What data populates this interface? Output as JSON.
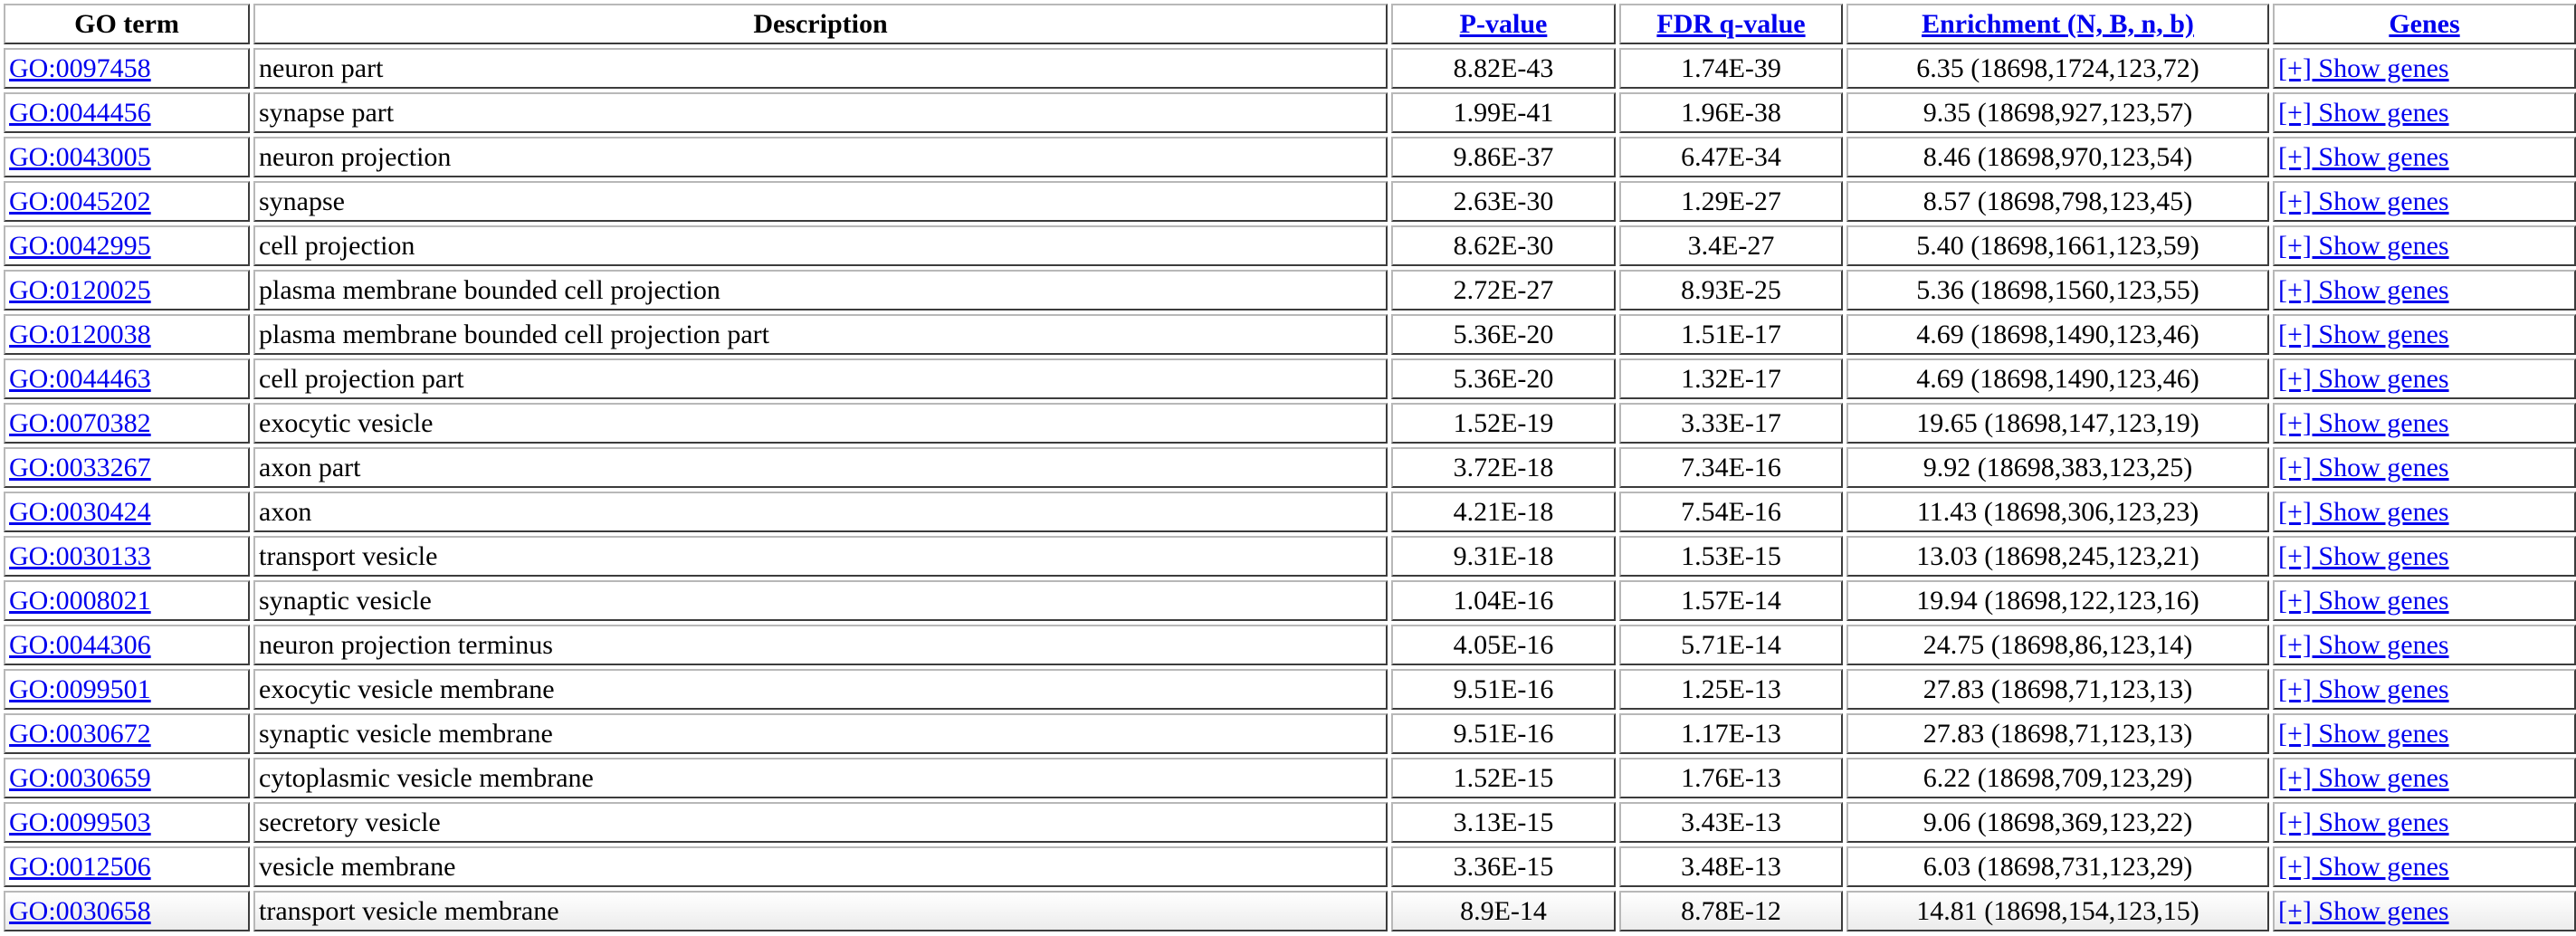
{
  "headers": {
    "go_term": "GO term",
    "description": "Description",
    "pvalue": "P-value",
    "fdr": "FDR q-value",
    "enrichment": "Enrichment (N, B, n, b)",
    "genes": "Genes"
  },
  "link_color": "#0000ee",
  "rows": [
    {
      "go": "GO:0097458",
      "desc": "neuron part",
      "p": "8.82E-43",
      "fdr": "1.74E-39",
      "enr": "6.35 (18698,1724,123,72)",
      "genes": "[+] Show genes"
    },
    {
      "go": "GO:0044456",
      "desc": "synapse part",
      "p": "1.99E-41",
      "fdr": "1.96E-38",
      "enr": "9.35 (18698,927,123,57)",
      "genes": "[+] Show genes"
    },
    {
      "go": "GO:0043005",
      "desc": "neuron projection",
      "p": "9.86E-37",
      "fdr": "6.47E-34",
      "enr": "8.46 (18698,970,123,54)",
      "genes": "[+] Show genes"
    },
    {
      "go": "GO:0045202",
      "desc": "synapse",
      "p": "2.63E-30",
      "fdr": "1.29E-27",
      "enr": "8.57 (18698,798,123,45)",
      "genes": "[+] Show genes"
    },
    {
      "go": "GO:0042995",
      "desc": "cell projection",
      "p": "8.62E-30",
      "fdr": "3.4E-27",
      "enr": "5.40 (18698,1661,123,59)",
      "genes": "[+] Show genes"
    },
    {
      "go": "GO:0120025",
      "desc": "plasma membrane bounded cell projection",
      "p": "2.72E-27",
      "fdr": "8.93E-25",
      "enr": "5.36 (18698,1560,123,55)",
      "genes": "[+] Show genes"
    },
    {
      "go": "GO:0120038",
      "desc": "plasma membrane bounded cell projection part",
      "p": "5.36E-20",
      "fdr": "1.51E-17",
      "enr": "4.69 (18698,1490,123,46)",
      "genes": "[+] Show genes"
    },
    {
      "go": "GO:0044463",
      "desc": "cell projection part",
      "p": "5.36E-20",
      "fdr": "1.32E-17",
      "enr": "4.69 (18698,1490,123,46)",
      "genes": "[+] Show genes"
    },
    {
      "go": "GO:0070382",
      "desc": "exocytic vesicle",
      "p": "1.52E-19",
      "fdr": "3.33E-17",
      "enr": "19.65 (18698,147,123,19)",
      "genes": "[+] Show genes"
    },
    {
      "go": "GO:0033267",
      "desc": "axon part",
      "p": "3.72E-18",
      "fdr": "7.34E-16",
      "enr": "9.92 (18698,383,123,25)",
      "genes": "[+] Show genes"
    },
    {
      "go": "GO:0030424",
      "desc": "axon",
      "p": "4.21E-18",
      "fdr": "7.54E-16",
      "enr": "11.43 (18698,306,123,23)",
      "genes": "[+] Show genes"
    },
    {
      "go": "GO:0030133",
      "desc": "transport vesicle",
      "p": "9.31E-18",
      "fdr": "1.53E-15",
      "enr": "13.03 (18698,245,123,21)",
      "genes": "[+] Show genes"
    },
    {
      "go": "GO:0008021",
      "desc": "synaptic vesicle",
      "p": "1.04E-16",
      "fdr": "1.57E-14",
      "enr": "19.94 (18698,122,123,16)",
      "genes": "[+] Show genes"
    },
    {
      "go": "GO:0044306",
      "desc": "neuron projection terminus",
      "p": "4.05E-16",
      "fdr": "5.71E-14",
      "enr": "24.75 (18698,86,123,14)",
      "genes": "[+] Show genes"
    },
    {
      "go": "GO:0099501",
      "desc": "exocytic vesicle membrane",
      "p": "9.51E-16",
      "fdr": "1.25E-13",
      "enr": "27.83 (18698,71,123,13)",
      "genes": "[+] Show genes"
    },
    {
      "go": "GO:0030672",
      "desc": "synaptic vesicle membrane",
      "p": "9.51E-16",
      "fdr": "1.17E-13",
      "enr": "27.83 (18698,71,123,13)",
      "genes": "[+] Show genes"
    },
    {
      "go": "GO:0030659",
      "desc": "cytoplasmic vesicle membrane",
      "p": "1.52E-15",
      "fdr": "1.76E-13",
      "enr": "6.22 (18698,709,123,29)",
      "genes": "[+] Show genes"
    },
    {
      "go": "GO:0099503",
      "desc": "secretory vesicle",
      "p": "3.13E-15",
      "fdr": "3.43E-13",
      "enr": "9.06 (18698,369,123,22)",
      "genes": "[+] Show genes"
    },
    {
      "go": "GO:0012506",
      "desc": "vesicle membrane",
      "p": "3.36E-15",
      "fdr": "3.48E-13",
      "enr": "6.03 (18698,731,123,29)",
      "genes": "[+] Show genes"
    },
    {
      "go": "GO:0030658",
      "desc": "transport vesicle membrane",
      "p": "8.9E-14",
      "fdr": "8.78E-12",
      "enr": "14.81 (18698,154,123,15)",
      "genes": "[+] Show genes"
    }
  ]
}
